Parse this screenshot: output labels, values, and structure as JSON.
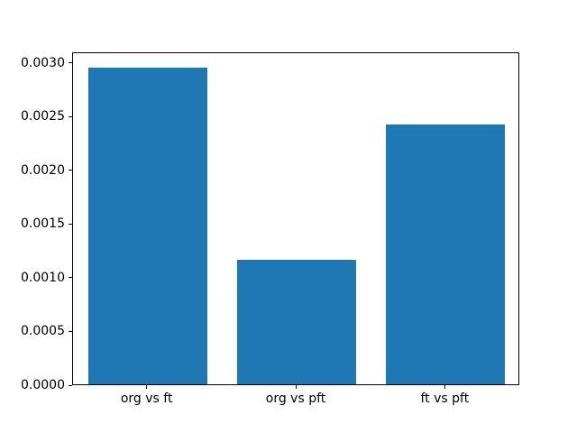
{
  "figure": {
    "background": "#ffffff"
  },
  "chart_data": {
    "type": "bar",
    "title": "",
    "xlabel": "",
    "ylabel": "",
    "categories": [
      "org vs ft",
      "org vs pft",
      "ft vs pft"
    ],
    "values": [
      0.00295,
      0.00116,
      0.00242
    ],
    "ylim": [
      0,
      0.0031
    ],
    "ytick_values": [
      0.0,
      0.0005,
      0.001,
      0.0015,
      0.002,
      0.0025,
      0.003
    ],
    "ytick_labels": [
      "0.0000",
      "0.0005",
      "0.0010",
      "0.0015",
      "0.0020",
      "0.0025",
      "0.0030"
    ],
    "bar_color": "#1f77b4",
    "bar_width_fraction": 0.8,
    "grid": false,
    "legend_position": "none",
    "spine_color": "#000000",
    "tick_color": "#000000",
    "text_color": "#000000"
  }
}
